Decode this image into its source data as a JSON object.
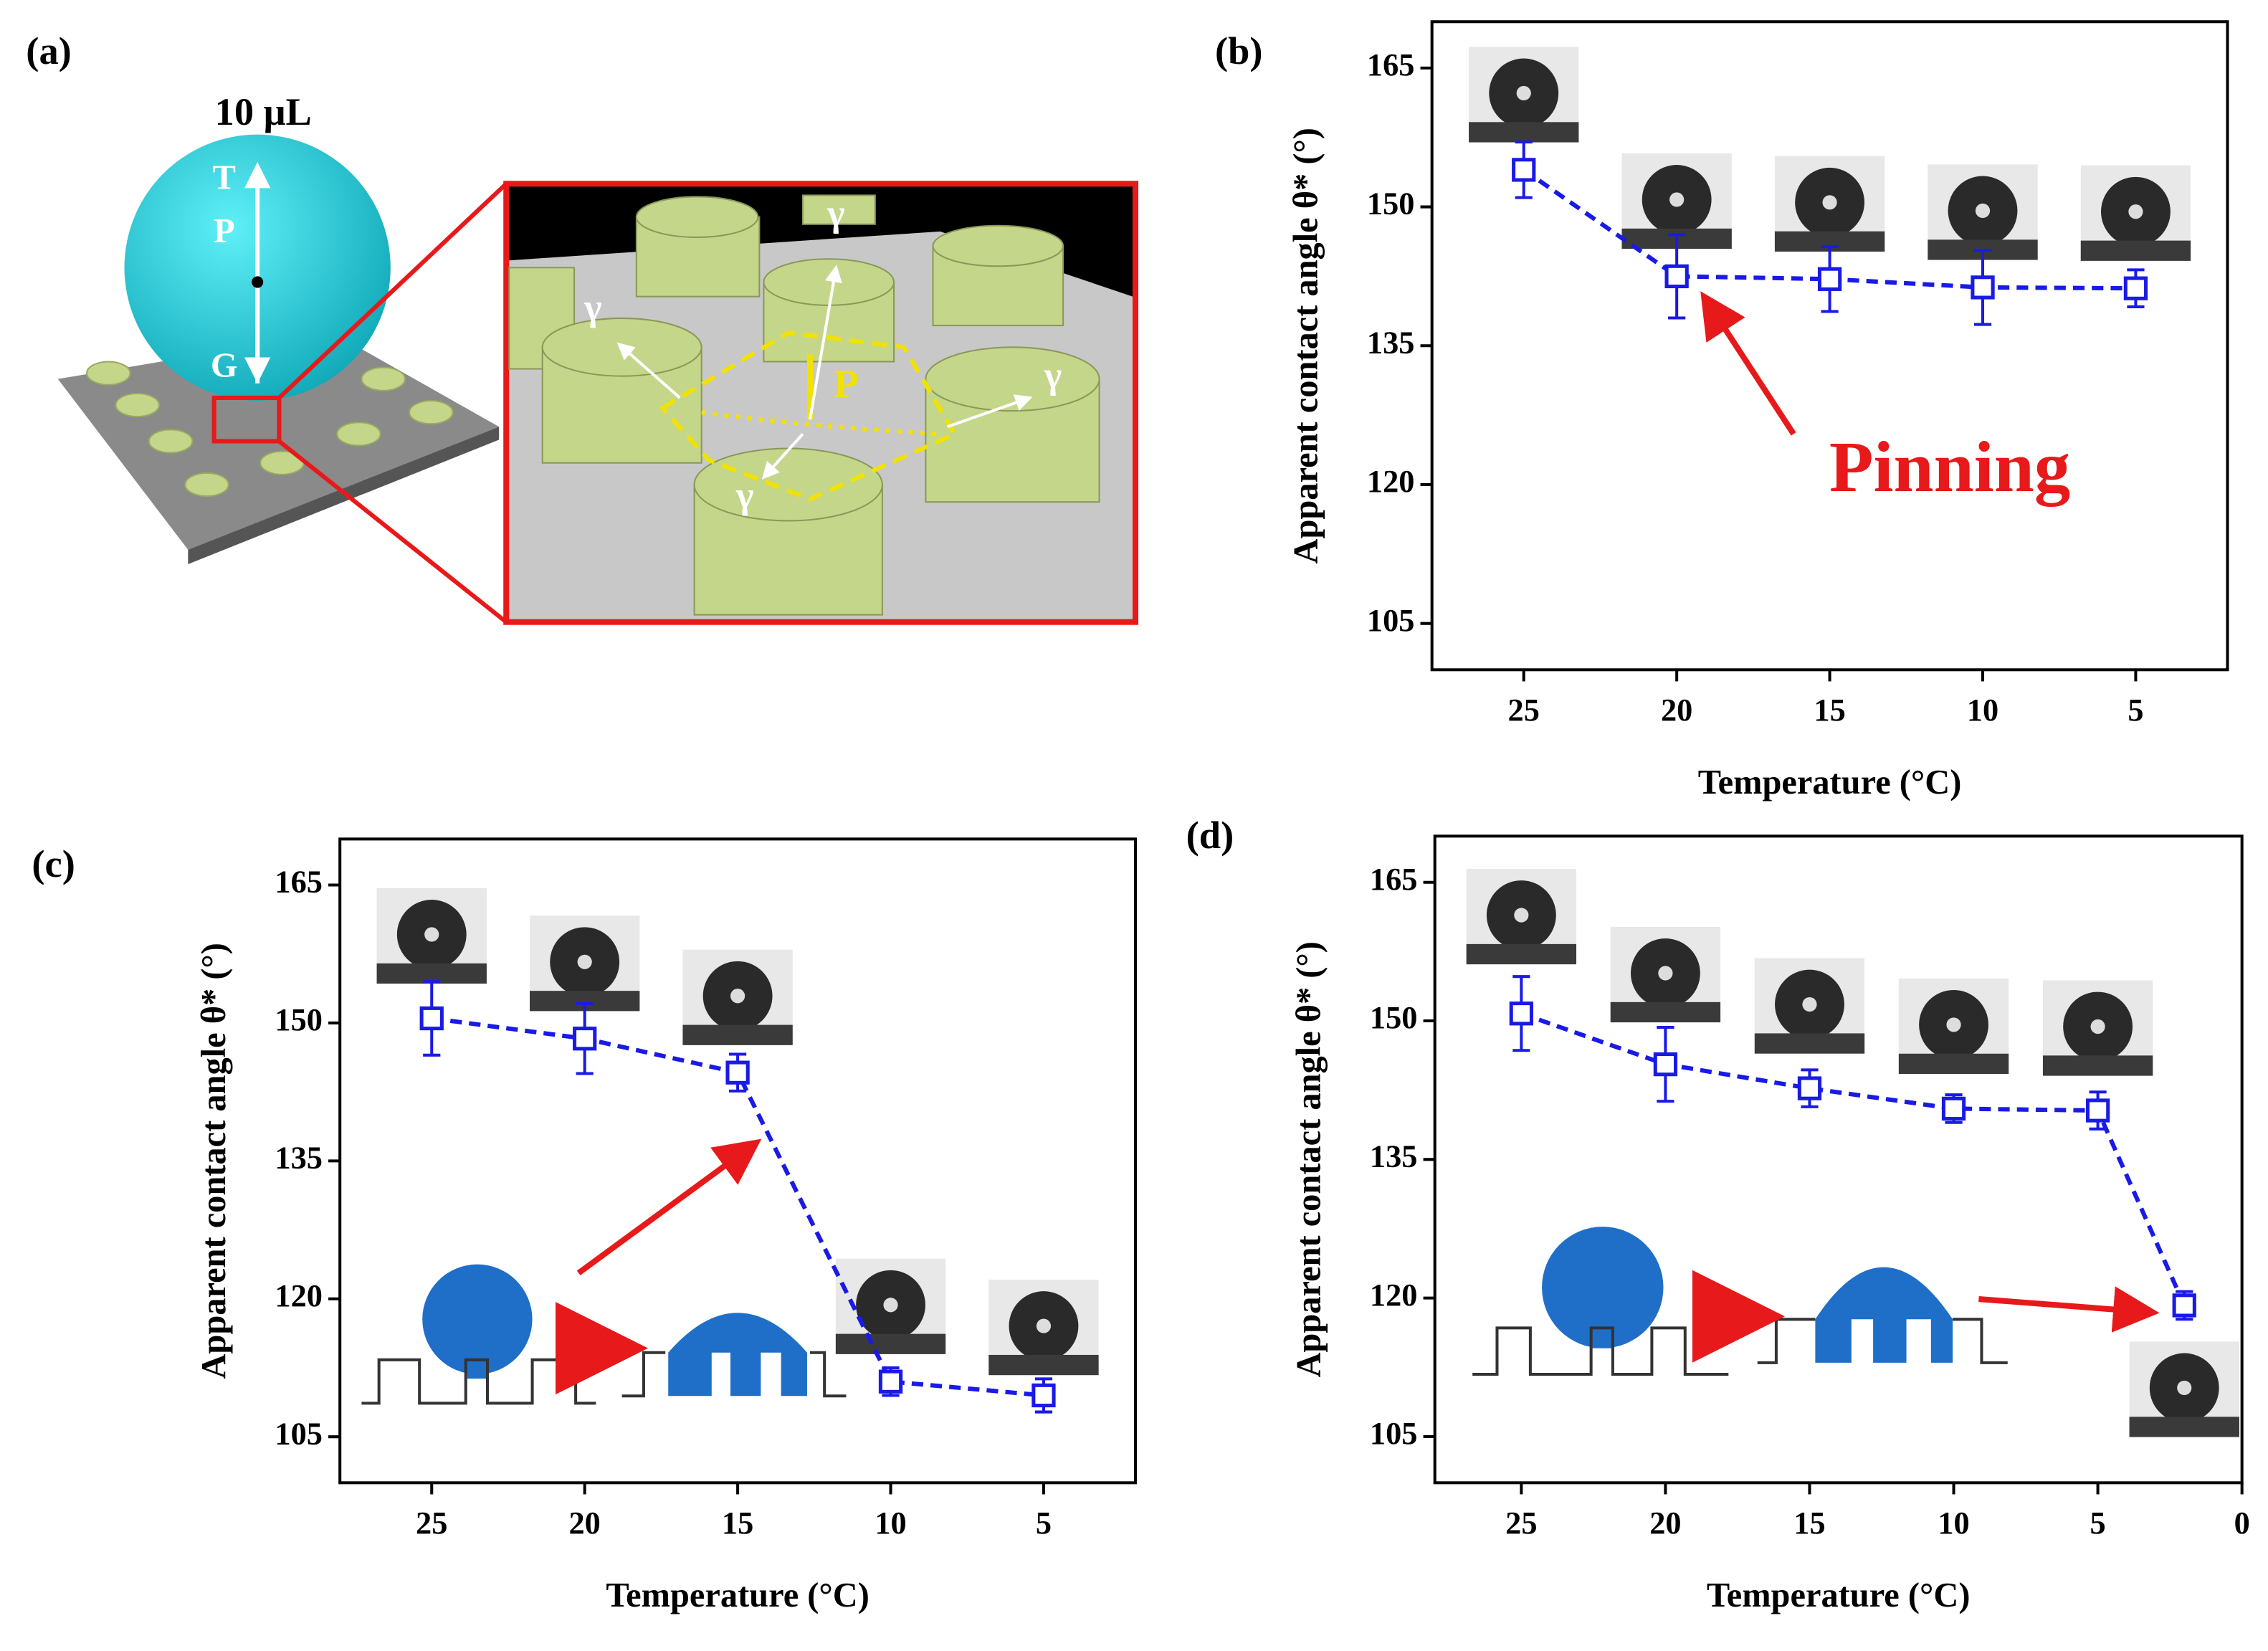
{
  "panel_a": {
    "label": "(a)",
    "volume": "10 μL",
    "droplet_forces": [
      "T",
      "P",
      "G"
    ],
    "inset_labels": [
      "γ",
      "γ",
      "γ",
      "γ",
      "P"
    ]
  },
  "chart_data": [
    {
      "type": "line",
      "title": "(b)",
      "xlabel": "Temperature (°C)",
      "ylabel": "Apparent contact angle θ* (°)",
      "annotation": "Pinning",
      "x": [
        25,
        20,
        15,
        10,
        5
      ],
      "values": [
        154,
        142.5,
        142.2,
        141.3,
        141.2
      ],
      "errors": [
        3,
        4.5,
        3.5,
        4,
        2
      ],
      "color": "#1a1ae6",
      "xlim": [
        28,
        2
      ],
      "xticks": [
        25,
        20,
        15,
        10,
        5
      ],
      "ylim": [
        100,
        170
      ],
      "yticks": [
        105,
        120,
        135,
        150,
        165
      ]
    },
    {
      "type": "line",
      "title": "(c)",
      "xlabel": "Temperature (°C)",
      "ylabel": "Apparent contact angle θ* (°)",
      "x": [
        25,
        20,
        15,
        10,
        5
      ],
      "values": [
        150.5,
        148.3,
        144.6,
        111,
        109.5
      ],
      "errors": [
        4,
        3.8,
        2,
        1.5,
        1.8
      ],
      "color": "#1a1ae6",
      "xlim": [
        28,
        2
      ],
      "xticks": [
        25,
        20,
        15,
        10,
        5
      ],
      "ylim": [
        100,
        170
      ],
      "yticks": [
        105,
        120,
        135,
        150,
        165
      ]
    },
    {
      "type": "line",
      "title": "(d)",
      "xlabel": "Temperature (°C)",
      "ylabel": "Apparent contact angle θ* (°)",
      "x": [
        25,
        20,
        15,
        10,
        5,
        2
      ],
      "values": [
        150.8,
        145.3,
        142.7,
        140.5,
        140.3,
        119.2
      ],
      "errors": [
        4,
        4,
        2,
        1.5,
        2,
        1.5
      ],
      "color": "#1a1ae6",
      "xlim": [
        28,
        0
      ],
      "xticks": [
        25,
        20,
        15,
        10,
        5,
        0
      ],
      "ylim": [
        100,
        170
      ],
      "yticks": [
        105,
        120,
        135,
        150,
        165
      ]
    }
  ]
}
